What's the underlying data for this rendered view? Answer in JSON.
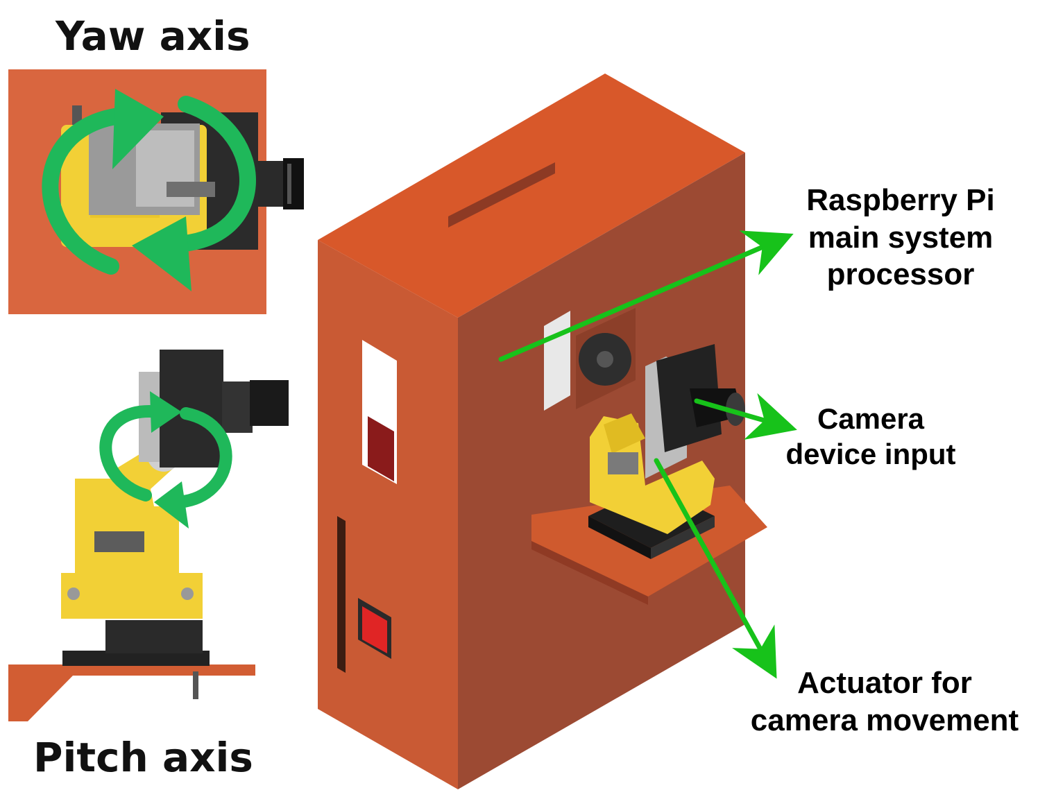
{
  "labels": {
    "yaw_axis": "Yaw axis",
    "pitch_axis": "Pitch axis",
    "raspberry_pi": [
      "Raspberry Pi",
      "main system",
      "processor"
    ],
    "camera": [
      "Camera",
      "device input"
    ],
    "actuator": [
      "Actuator for",
      "camera movement"
    ]
  },
  "colors": {
    "enclosure_front": "#c95a34",
    "enclosure_side": "#9c4a33",
    "enclosure_top": "#d8582a",
    "bracket_yellow": "#f2d036",
    "arrow_green": "#17c21a",
    "rotation_green": "#1fb85a",
    "camera_black": "#222222"
  },
  "icons": [
    "yaw-rotation-icon",
    "pitch-rotation-icon",
    "power-switch-icon",
    "fan-icon",
    "camera-lens-icon"
  ]
}
